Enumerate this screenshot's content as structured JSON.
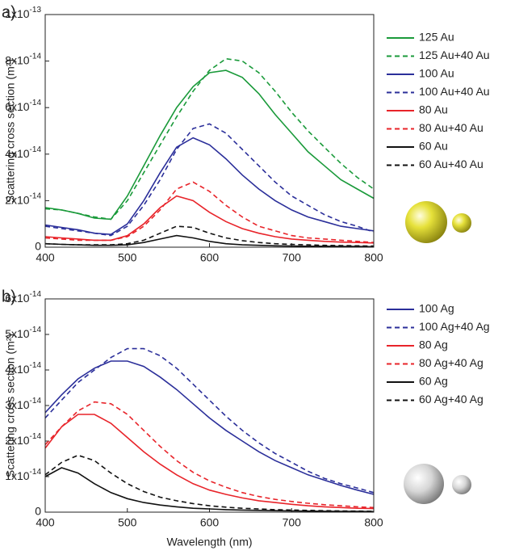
{
  "chart_data": [
    {
      "type": "line",
      "panel_label": "a)",
      "y_label": "Scattering cross section (m²)",
      "x": [
        400,
        420,
        440,
        460,
        480,
        500,
        520,
        540,
        560,
        580,
        600,
        620,
        640,
        660,
        680,
        700,
        720,
        740,
        760,
        780,
        800
      ],
      "xlim": [
        400,
        800
      ],
      "xticks": [
        400,
        500,
        600,
        700,
        800
      ],
      "ylim": [
        0,
        1e-13
      ],
      "yticks": [
        0,
        {
          "value": 2e-14,
          "label": "2x10-14"
        },
        {
          "value": 4e-14,
          "label": "4x10-14"
        },
        {
          "value": 6e-14,
          "label": "6x10-14"
        },
        {
          "value": 8e-14,
          "label": "8x10-14"
        },
        {
          "value": 1e-13,
          "label": "1x10-13"
        }
      ],
      "series": [
        {
          "name": "125 Au",
          "color": "#1a9a3a",
          "dash": false,
          "values": [
            1.7e-14,
            1.6e-14,
            1.45e-14,
            1.25e-14,
            1.2e-14,
            2.2e-14,
            3.5e-14,
            4.8e-14,
            6e-14,
            6.9e-14,
            7.5e-14,
            7.6e-14,
            7.3e-14,
            6.6e-14,
            5.7e-14,
            4.9e-14,
            4.1e-14,
            3.5e-14,
            2.9e-14,
            2.5e-14,
            2.1e-14
          ]
        },
        {
          "name": "125 Au+40 Au",
          "color": "#1a9a3a",
          "dash": true,
          "values": [
            1.65e-14,
            1.6e-14,
            1.45e-14,
            1.3e-14,
            1.2e-14,
            2e-14,
            3.2e-14,
            4.4e-14,
            5.6e-14,
            6.7e-14,
            7.6e-14,
            8.1e-14,
            8e-14,
            7.5e-14,
            6.7e-14,
            5.8e-14,
            5e-14,
            4.3e-14,
            3.6e-14,
            3e-14,
            2.5e-14
          ]
        },
        {
          "name": "100 Au",
          "color": "#2b2f9a",
          "dash": false,
          "values": [
            9.5e-15,
            8.5e-15,
            7.5e-15,
            6e-15,
            5.5e-15,
            1e-14,
            2e-14,
            3.2e-14,
            4.3e-14,
            4.7e-14,
            4.4e-14,
            3.8e-14,
            3.1e-14,
            2.5e-14,
            2e-14,
            1.6e-14,
            1.3e-14,
            1.1e-14,
            9e-15,
            8e-15,
            7e-15
          ]
        },
        {
          "name": "100 Au+40 Au",
          "color": "#2b2f9a",
          "dash": true,
          "values": [
            9e-15,
            8e-15,
            7e-15,
            6e-15,
            5e-15,
            9e-15,
            1.8e-14,
            2.9e-14,
            4.2e-14,
            5.1e-14,
            5.3e-14,
            4.9e-14,
            4.2e-14,
            3.5e-14,
            2.8e-14,
            2.2e-14,
            1.8e-14,
            1.4e-14,
            1.1e-14,
            9e-15,
            6.5e-15
          ]
        },
        {
          "name": "80 Au",
          "color": "#e8242a",
          "dash": false,
          "values": [
            4.5e-15,
            4e-15,
            3.5e-15,
            3e-15,
            3e-15,
            5e-15,
            1e-14,
            1.7e-14,
            2.2e-14,
            2e-14,
            1.5e-14,
            1.1e-14,
            8e-15,
            6e-15,
            4.5e-15,
            3.5e-15,
            3e-15,
            2.5e-15,
            2.2e-15,
            2e-15,
            1.8e-15
          ]
        },
        {
          "name": "80 Au+40 Au",
          "color": "#e8242a",
          "dash": true,
          "values": [
            4e-15,
            3.5e-15,
            3e-15,
            3e-15,
            3e-15,
            4.5e-15,
            9e-15,
            1.6e-14,
            2.5e-14,
            2.8e-14,
            2.4e-14,
            1.8e-14,
            1.3e-14,
            9e-15,
            7e-15,
            5e-15,
            4e-15,
            3.5e-15,
            3e-15,
            2.5e-15,
            2e-15
          ]
        },
        {
          "name": "60 Au",
          "color": "#111111",
          "dash": false,
          "values": [
            1.5e-15,
            1.2e-15,
            1e-15,
            8e-16,
            8e-16,
            1e-15,
            2e-15,
            3.5e-15,
            5e-15,
            4e-15,
            2.5e-15,
            1.5e-15,
            1e-15,
            8e-16,
            6e-16,
            5e-16,
            4e-16,
            4e-16,
            3e-16,
            3e-16,
            2e-16
          ]
        },
        {
          "name": "60 Au+40 Au",
          "color": "#111111",
          "dash": true,
          "values": [
            1.5e-15,
            1.2e-15,
            1e-15,
            1e-15,
            1e-15,
            1.5e-15,
            3e-15,
            6e-15,
            9e-15,
            8.5e-15,
            6e-15,
            4e-15,
            2.8e-15,
            2e-15,
            1.5e-15,
            1.2e-15,
            1e-15,
            8e-16,
            7e-16,
            6e-16,
            5e-16
          ]
        }
      ]
    },
    {
      "type": "line",
      "panel_label": "b)",
      "y_label": "Scattering cross section (m²)",
      "x_label": "Wavelength (nm)",
      "x": [
        400,
        420,
        440,
        460,
        480,
        500,
        520,
        540,
        560,
        580,
        600,
        620,
        640,
        660,
        680,
        700,
        720,
        740,
        760,
        780,
        800
      ],
      "xlim": [
        400,
        800
      ],
      "xticks": [
        400,
        500,
        600,
        700,
        800
      ],
      "ylim": [
        0,
        6e-14
      ],
      "yticks": [
        0,
        {
          "value": 1e-14,
          "label": "1x10-14"
        },
        {
          "value": 2e-14,
          "label": "2x10-14"
        },
        {
          "value": 3e-14,
          "label": "3x10-14"
        },
        {
          "value": 4e-14,
          "label": "4x10-14"
        },
        {
          "value": 5e-14,
          "label": "5x10-14"
        },
        {
          "value": 6e-14,
          "label": "6x10-14"
        }
      ],
      "series": [
        {
          "name": "100 Ag",
          "color": "#2b2f9a",
          "dash": false,
          "values": [
            2.8e-14,
            3.3e-14,
            3.75e-14,
            4.05e-14,
            4.25e-14,
            4.25e-14,
            4.1e-14,
            3.8e-14,
            3.45e-14,
            3.05e-14,
            2.65e-14,
            2.3e-14,
            2e-14,
            1.7e-14,
            1.45e-14,
            1.25e-14,
            1.05e-14,
            9e-15,
            7.5e-15,
            6.2e-15,
            5e-15
          ]
        },
        {
          "name": "100 Ag+40 Ag",
          "color": "#2b2f9a",
          "dash": true,
          "values": [
            2.65e-14,
            3.15e-14,
            3.65e-14,
            4e-14,
            4.35e-14,
            4.6e-14,
            4.6e-14,
            4.4e-14,
            4.05e-14,
            3.6e-14,
            3.15e-14,
            2.7e-14,
            2.3e-14,
            1.95e-14,
            1.65e-14,
            1.4e-14,
            1.15e-14,
            9.5e-15,
            8e-15,
            6.8e-15,
            5.5e-15
          ]
        },
        {
          "name": "80 Ag",
          "color": "#e8242a",
          "dash": false,
          "values": [
            1.8e-14,
            2.4e-14,
            2.75e-14,
            2.75e-14,
            2.5e-14,
            2.1e-14,
            1.7e-14,
            1.35e-14,
            1.05e-14,
            8e-15,
            6.2e-15,
            5e-15,
            4e-15,
            3.2e-15,
            2.7e-15,
            2.2e-15,
            1.8e-15,
            1.5e-15,
            1.3e-15,
            1.1e-15,
            1e-15
          ]
        },
        {
          "name": "80 Ag+40 Ag",
          "color": "#e8242a",
          "dash": true,
          "values": [
            1.9e-14,
            2.4e-14,
            2.85e-14,
            3.1e-14,
            3.05e-14,
            2.75e-14,
            2.3e-14,
            1.85e-14,
            1.45e-14,
            1.12e-14,
            8.8e-15,
            7e-15,
            5.5e-15,
            4.4e-15,
            3.6e-15,
            3e-15,
            2.5e-15,
            2.1e-15,
            1.8e-15,
            1.5e-15,
            1.3e-15
          ]
        },
        {
          "name": "60 Ag",
          "color": "#111111",
          "dash": false,
          "values": [
            1e-14,
            1.25e-14,
            1.1e-14,
            8e-15,
            5.5e-15,
            3.8e-15,
            2.7e-15,
            2e-15,
            1.5e-15,
            1.1e-15,
            9e-16,
            7e-16,
            6e-16,
            5e-16,
            4e-16,
            3.5e-16,
            3e-16,
            2.5e-16,
            2e-16,
            2e-16,
            1.5e-16
          ]
        },
        {
          "name": "60 Ag+40 Ag",
          "color": "#111111",
          "dash": true,
          "values": [
            1.05e-14,
            1.4e-14,
            1.6e-14,
            1.45e-14,
            1.1e-14,
            8e-15,
            5.8e-15,
            4.2e-15,
            3.2e-15,
            2.4e-15,
            1.8e-15,
            1.4e-15,
            1.1e-15,
            9e-16,
            7e-16,
            6e-16,
            5e-16,
            4e-16,
            3.5e-16,
            3e-16,
            2.5e-16
          ]
        }
      ]
    }
  ]
}
